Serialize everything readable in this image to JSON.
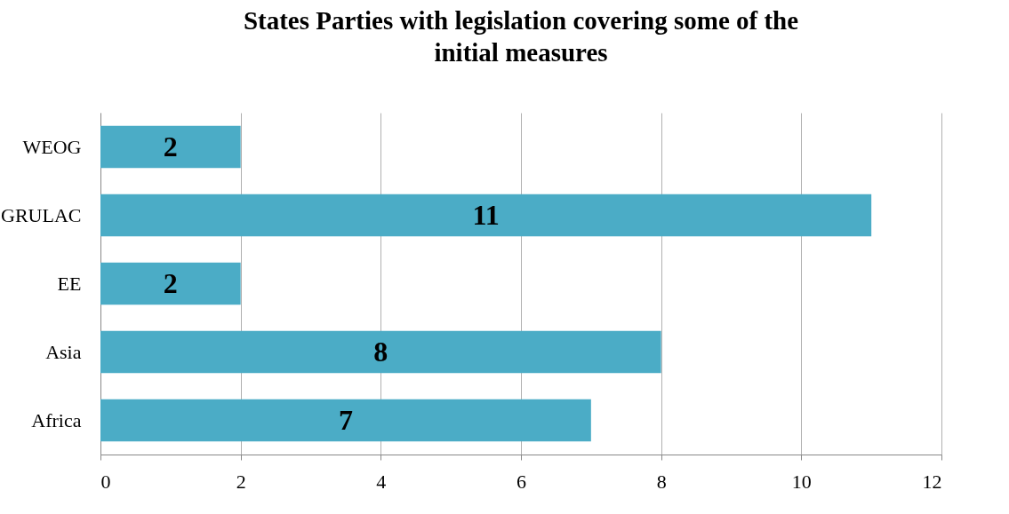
{
  "chart_data": {
    "type": "bar",
    "orientation": "horizontal",
    "title": "States Parties with legislation covering some of the initial measures",
    "categories": [
      "WEOG",
      "GRULAC",
      "EE",
      "Asia",
      "Africa"
    ],
    "values": [
      2,
      11,
      2,
      8,
      7
    ],
    "color": "#4bacc6",
    "xlim": [
      0,
      12
    ],
    "xticks": [
      0,
      2,
      4,
      6,
      8,
      10,
      12
    ],
    "grid": "x",
    "data_labels": true
  }
}
